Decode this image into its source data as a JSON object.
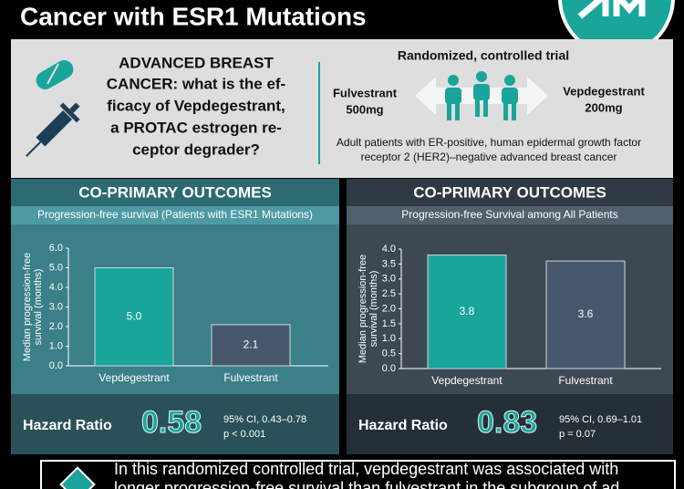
{
  "header": {
    "title": "Cancer with ESR1 Mutations"
  },
  "intro": {
    "question_lines": [
      "ADVANCED BREAST",
      "CANCER: what is the ef-",
      "ficacy of Vepdegestrant,",
      "a PROTAC estrogen re-",
      "ceptor degrader?"
    ],
    "design": "Randomized, controlled trial",
    "arms": [
      {
        "name": "Fulvestrant",
        "dose": "500mg"
      },
      {
        "name": "Vepdegestrant",
        "dose": "200mg"
      }
    ],
    "population_lines": [
      "Adult patients with ER-positive, human epidermal growth factor",
      "receptor 2 (HER2)–negative advanced breast cancer"
    ]
  },
  "chart_data": [
    {
      "type": "bar",
      "heading": "CO-PRIMARY OUTCOMES",
      "title": "Progression-free survival (Patients with ESR1 Mutations)",
      "ylabel": [
        "Median progression-free",
        "survival (months)"
      ],
      "categories": [
        "Vepdegestrant",
        "Fulvestrant"
      ],
      "values": [
        5.0,
        2.1
      ],
      "value_labels": [
        "5.0",
        "2.1"
      ],
      "colors": [
        "#1aa59b",
        "#48586c"
      ],
      "ylim": [
        0,
        6
      ],
      "yticks": [
        {
          "value": 0,
          "label": "0.0"
        },
        {
          "value": 1,
          "label": "1.0"
        },
        {
          "value": 2,
          "label": "2.0"
        },
        {
          "value": 3,
          "label": "3.0"
        },
        {
          "value": 4,
          "label": "4.0"
        },
        {
          "value": 5,
          "label": "5.0"
        },
        {
          "value": 6,
          "label": "6.0"
        }
      ],
      "hazard_label": "Hazard Ratio",
      "hazard_ratio": 0.58,
      "ci": "95% CI, 0.43–0.78",
      "p": "p < 0.001"
    },
    {
      "type": "bar",
      "heading": "CO-PRIMARY OUTCOMES",
      "title": "Progression-free Survival among All Patients",
      "ylabel": [
        "Median progression-free",
        "survival (months)"
      ],
      "categories": [
        "Vepdegestrant",
        "Fulvestrant"
      ],
      "values": [
        3.8,
        3.6
      ],
      "value_labels": [
        "3.8",
        "3.6"
      ],
      "colors": [
        "#1aa59b",
        "#48586c"
      ],
      "ylim": [
        0,
        4
      ],
      "yticks": [
        {
          "value": 0,
          "label": "0.0"
        },
        {
          "value": 0.5,
          "label": "0.5"
        },
        {
          "value": 1,
          "label": "1.0"
        },
        {
          "value": 1.5,
          "label": "1.5"
        },
        {
          "value": 2,
          "label": "2.0"
        },
        {
          "value": 2.5,
          "label": "2.5"
        },
        {
          "value": 3,
          "label": "3.0"
        },
        {
          "value": 3.5,
          "label": "3.5"
        },
        {
          "value": 4,
          "label": "4.0"
        }
      ],
      "hazard_label": "Hazard Ratio",
      "hazard_ratio": 0.83,
      "ci": "95% CI, 0.69–1.01",
      "p": "p = 0.07"
    }
  ],
  "conclusion": {
    "lines": [
      "In this randomized controlled trial, vepdegestrant was associated with",
      "longer progression-free survival than fulvestrant in the subgroup of ad"
    ]
  }
}
